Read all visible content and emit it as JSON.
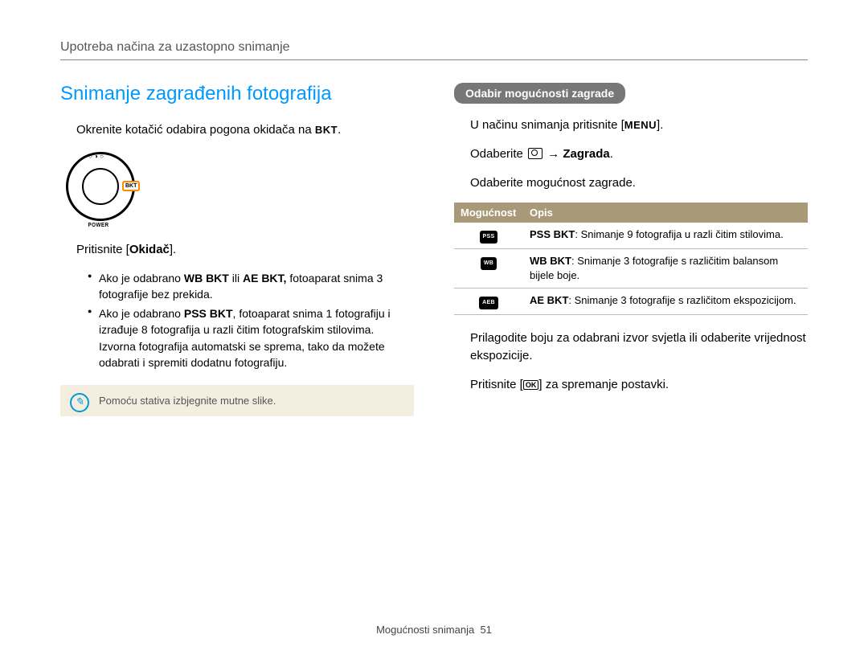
{
  "breadcrumb": "Upotreba načina za uzastopno snimanje",
  "title": "Snimanje zagrađenih fotograﬁja",
  "left": {
    "step1_pre": "Okrenite kotačić odabira pogona okidača na ",
    "step1_btn": "BKT",
    "step1_post": ".",
    "dial_bkt": "BKT",
    "dial_power": "POWER",
    "step2_pre": "Pritisnite [",
    "step2_bold": "Okidač",
    "step2_post": "].",
    "bullet1_a": "Ako je odabrano ",
    "bullet1_b": "WB BKT",
    "bullet1_c": " ili ",
    "bullet1_d": "AE BKT,",
    "bullet1_e": " fotoaparat snima 3 fotograﬁje bez prekida.",
    "bullet2_a": "Ako je odabrano ",
    "bullet2_b": "PSS BKT",
    "bullet2_c": ", fotoaparat snima 1 fotograﬁju i izrađuje 8 fotograﬁja u razli čitim fotografskim stilovima. Izvorna fotograﬁja automatski se sprema, tako da možete odabrati i spremiti dodatnu fotograﬁju.",
    "note": "Pomoću stativa izbjegnite mutne slike."
  },
  "right": {
    "pill": "Odabir mogućnosti zagrade",
    "step1_pre": "U načinu snimanja pritisnite [",
    "step1_btn": "MENU",
    "step1_post": "].",
    "step2_pre": "Odaberite ",
    "step2_arrow": " → ",
    "step2_bold": "Zagrada",
    "step2_post": ".",
    "step3": "Odaberite mogućnost zagrade.",
    "table": {
      "header_option": "Mogućnost",
      "header_desc": "Opis",
      "header_bg": "#a89a78",
      "header_color": "#ffffff",
      "rows": [
        {
          "icon": "PSS",
          "bold": "PSS BKT",
          "text": ": Snimanje 9 fotograﬁja u razli čitim stilovima."
        },
        {
          "icon": "WB",
          "bold": "WB BKT",
          "text": ": Snimanje 3 fotograﬁje s različitim balansom bijele boje."
        },
        {
          "icon": "AEB",
          "bold": "AE BKT",
          "text": ": Snimanje 3 fotograﬁje s različitom ekspozicijom."
        }
      ]
    },
    "step4": "Prilagodite boju za odabrani izvor svjetla ili odaberite vrijednost ekspozicije.",
    "step5_pre": "Pritisnite [",
    "step5_ok": "OK",
    "step5_post": "] za spremanje postavki."
  },
  "footer_label": "Mogućnosti snimanja",
  "footer_page": "51"
}
